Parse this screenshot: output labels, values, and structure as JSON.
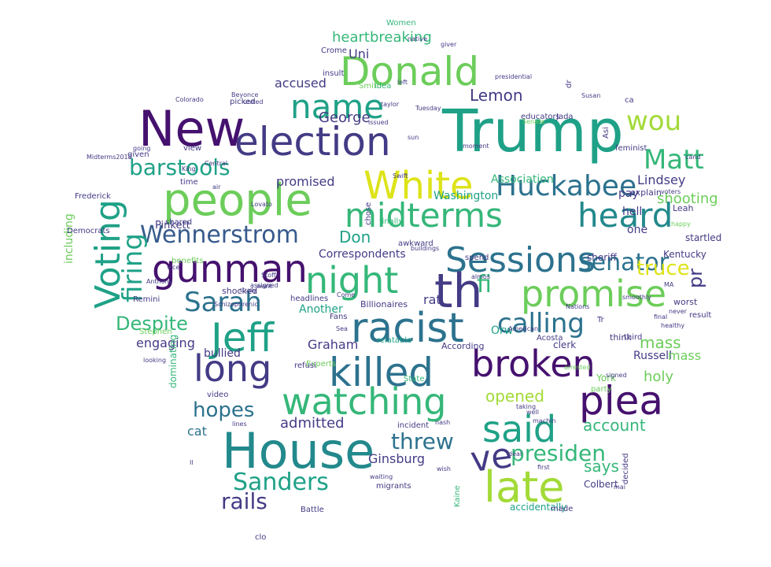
{
  "palette": {
    "purple": "#45116e",
    "indigo": "#433b85",
    "blue": "#375a8c",
    "steel": "#2c728e",
    "teal": "#22898c",
    "sea": "#1fa187",
    "green": "#35b779",
    "lime": "#6ccd5a",
    "chartreuse": "#a2da37",
    "yellow": "#dde318"
  },
  "words": [
    {
      "text": "Trump",
      "color": "sea"
    },
    {
      "text": "New",
      "color": "purple"
    },
    {
      "text": "Donald",
      "color": "lime"
    },
    {
      "text": "election",
      "color": "indigo"
    },
    {
      "text": "name",
      "color": "sea"
    },
    {
      "text": "people",
      "color": "lime"
    },
    {
      "text": "White",
      "color": "yellow"
    },
    {
      "text": "Huckabee",
      "color": "steel"
    },
    {
      "text": "Matt",
      "color": "green"
    },
    {
      "text": "wou",
      "color": "chartreuse"
    },
    {
      "text": "Voting",
      "color": "sea"
    },
    {
      "text": "midterms",
      "color": "green"
    },
    {
      "text": "heard",
      "color": "teal"
    },
    {
      "text": "Wennerstrom",
      "color": "blue"
    },
    {
      "text": "firing",
      "color": "sea"
    },
    {
      "text": "gunman",
      "color": "purple"
    },
    {
      "text": "Sessions",
      "color": "steel"
    },
    {
      "text": "senator",
      "color": "steel"
    },
    {
      "text": "night",
      "color": "green"
    },
    {
      "text": "th",
      "color": "indigo"
    },
    {
      "text": "promise",
      "color": "lime"
    },
    {
      "text": "truce",
      "color": "yellow"
    },
    {
      "text": "Sarah",
      "color": "steel"
    },
    {
      "text": "racist",
      "color": "steel"
    },
    {
      "text": "Jeff",
      "color": "sea"
    },
    {
      "text": "calling",
      "color": "steel"
    },
    {
      "text": "Despite",
      "color": "green"
    },
    {
      "text": "long",
      "color": "indigo"
    },
    {
      "text": "killed",
      "color": "steel"
    },
    {
      "text": "broken",
      "color": "purple"
    },
    {
      "text": "watching",
      "color": "green"
    },
    {
      "text": "plea",
      "color": "purple"
    },
    {
      "text": "hopes",
      "color": "steel"
    },
    {
      "text": "said",
      "color": "sea"
    },
    {
      "text": "House",
      "color": "teal"
    },
    {
      "text": "ve",
      "color": "indigo"
    },
    {
      "text": "threw",
      "color": "steel"
    },
    {
      "text": "late",
      "color": "chartreuse"
    },
    {
      "text": "Sanders",
      "color": "sea"
    },
    {
      "text": "presiden",
      "color": "green"
    },
    {
      "text": "rails",
      "color": "indigo"
    },
    {
      "text": "barstools",
      "color": "sea"
    },
    {
      "text": "Lemon",
      "color": "indigo"
    },
    {
      "text": "heartbreaking",
      "color": "green"
    },
    {
      "text": "George",
      "color": "indigo"
    },
    {
      "text": "Lindsey",
      "color": "indigo"
    },
    {
      "text": "shooting",
      "color": "lime"
    },
    {
      "text": "Washington",
      "color": "sea"
    },
    {
      "text": "Don",
      "color": "sea"
    },
    {
      "text": "fi",
      "color": "green"
    },
    {
      "text": "pr",
      "color": "indigo"
    },
    {
      "text": "opened",
      "color": "chartreuse"
    },
    {
      "text": "account",
      "color": "green"
    },
    {
      "text": "says",
      "color": "green"
    },
    {
      "text": "admitted",
      "color": "indigo"
    },
    {
      "text": "Ginsburg",
      "color": "indigo"
    },
    {
      "text": "mass",
      "color": "lime"
    },
    {
      "text": "holy",
      "color": "lime"
    },
    {
      "text": "engaging",
      "color": "indigo"
    },
    {
      "text": "Graham",
      "color": "indigo"
    },
    {
      "text": "promised",
      "color": "indigo"
    },
    {
      "text": "accused",
      "color": "indigo"
    },
    {
      "text": "Uni",
      "color": "indigo"
    },
    {
      "text": "Another",
      "color": "sea"
    },
    {
      "text": "rat",
      "color": "indigo"
    },
    {
      "text": "bullied",
      "color": "indigo"
    },
    {
      "text": "Orw",
      "color": "sea"
    },
    {
      "text": "pay",
      "color": "indigo"
    },
    {
      "text": "hell",
      "color": "indigo"
    },
    {
      "text": "one",
      "color": "indigo"
    },
    {
      "text": "Pinkett",
      "color": "indigo"
    },
    {
      "text": "Correspondents",
      "color": "indigo"
    },
    {
      "text": "Association",
      "color": "green"
    },
    {
      "text": "Kentucky",
      "color": "indigo"
    },
    {
      "text": "sheriff",
      "color": "indigo"
    },
    {
      "text": "startled",
      "color": "indigo"
    },
    {
      "text": "cat",
      "color": "steel"
    },
    {
      "text": "Russell",
      "color": "indigo"
    },
    {
      "text": "clerk",
      "color": "indigo"
    },
    {
      "text": "mass",
      "color": "lime"
    },
    {
      "text": "explain",
      "color": "indigo"
    },
    {
      "text": "Leah",
      "color": "indigo"
    },
    {
      "text": "spend",
      "color": "indigo"
    },
    {
      "text": "awkward",
      "color": "indigo"
    },
    {
      "text": "shocked",
      "color": "indigo"
    },
    {
      "text": "headlines",
      "color": "indigo"
    },
    {
      "text": "Billionaires",
      "color": "indigo"
    },
    {
      "text": "relatable",
      "color": "sea"
    },
    {
      "text": "Acosta",
      "color": "indigo"
    },
    {
      "text": "According",
      "color": "indigo"
    },
    {
      "text": "third",
      "color": "indigo"
    },
    {
      "text": "think",
      "color": "indigo"
    },
    {
      "text": "result",
      "color": "indigo"
    },
    {
      "text": "worst",
      "color": "indigo"
    },
    {
      "text": "York",
      "color": "lime"
    },
    {
      "text": "incident",
      "color": "indigo"
    },
    {
      "text": "Colbert",
      "color": "indigo"
    },
    {
      "text": "accidentally",
      "color": "sea"
    },
    {
      "text": "made",
      "color": "indigo"
    },
    {
      "text": "Battle",
      "color": "indigo"
    },
    {
      "text": "decided",
      "color": "indigo"
    },
    {
      "text": "including",
      "color": "lime"
    },
    {
      "text": "Women",
      "color": "green"
    },
    {
      "text": "Crome",
      "color": "indigo"
    },
    {
      "text": "insult",
      "color": "indigo"
    },
    {
      "text": "Smith",
      "color": "lime"
    },
    {
      "text": "idea",
      "color": "green"
    },
    {
      "text": "educators",
      "color": "indigo"
    },
    {
      "text": "Jada",
      "color": "indigo"
    },
    {
      "text": "picked",
      "color": "indigo"
    },
    {
      "text": "given",
      "color": "indigo"
    },
    {
      "text": "view",
      "color": "indigo"
    },
    {
      "text": "time",
      "color": "indigo"
    },
    {
      "text": "shared",
      "color": "indigo"
    },
    {
      "text": "benefits",
      "color": "lime"
    },
    {
      "text": "Remini",
      "color": "indigo"
    },
    {
      "text": "finally",
      "color": "green"
    },
    {
      "text": "chose",
      "color": "indigo"
    },
    {
      "text": "Democrats",
      "color": "indigo"
    },
    {
      "text": "feminist",
      "color": "indigo"
    },
    {
      "text": "Experts",
      "color": "lime"
    },
    {
      "text": "Kaine",
      "color": "green"
    },
    {
      "text": "State",
      "color": "green"
    },
    {
      "text": "Fans",
      "color": "indigo"
    },
    {
      "text": "party",
      "color": "lime"
    },
    {
      "text": "migrants",
      "color": "indigo"
    },
    {
      "text": "clo",
      "color": "indigo"
    },
    {
      "text": "dr",
      "color": "indigo"
    },
    {
      "text": "ca",
      "color": "indigo"
    },
    {
      "text": "Asi",
      "color": "indigo"
    },
    {
      "text": "Stephen",
      "color": "lime"
    },
    {
      "text": "dominating",
      "color": "green"
    },
    {
      "text": "video",
      "color": "indigo"
    },
    {
      "text": "refusi",
      "color": "indigo"
    },
    {
      "text": "Tr",
      "color": "indigo"
    },
    {
      "text": "Frederick",
      "color": "indigo"
    },
    {
      "text": "going",
      "color": "indigo"
    },
    {
      "text": "Midterms2018",
      "color": "indigo"
    },
    {
      "text": "King",
      "color": "indigo"
    },
    {
      "text": "Colorado",
      "color": "indigo"
    },
    {
      "text": "Beyonce",
      "color": "indigo"
    },
    {
      "text": "native",
      "color": "indigo"
    },
    {
      "text": "united",
      "color": "indigo"
    },
    {
      "text": "taylor",
      "color": "indigo"
    },
    {
      "text": "issued",
      "color": "indigo"
    },
    {
      "text": "presidential",
      "color": "indigo"
    },
    {
      "text": "Senate",
      "color": "lime"
    },
    {
      "text": "voters",
      "color": "indigo"
    },
    {
      "text": "Lovato",
      "color": "indigo"
    },
    {
      "text": "waiting",
      "color": "indigo"
    },
    {
      "text": "study",
      "color": "indigo"
    },
    {
      "text": "Anthony",
      "color": "indigo"
    },
    {
      "text": "smoothly",
      "color": "indigo"
    },
    {
      "text": "Nations",
      "color": "indigo"
    },
    {
      "text": "American",
      "color": "indigo"
    },
    {
      "text": "arrested",
      "color": "lime"
    },
    {
      "text": "signed",
      "color": "indigo"
    },
    {
      "text": "taking",
      "color": "indigo"
    },
    {
      "text": "machin",
      "color": "indigo"
    },
    {
      "text": "deal",
      "color": "indigo"
    },
    {
      "text": "lines",
      "color": "indigo"
    },
    {
      "text": "looking",
      "color": "indigo"
    },
    {
      "text": "healthy",
      "color": "indigo"
    },
    {
      "text": "Tuesday",
      "color": "indigo"
    },
    {
      "text": "moment",
      "color": "indigo"
    },
    {
      "text": "Il",
      "color": "indigo"
    },
    {
      "text": "first",
      "color": "indigo"
    },
    {
      "text": "wish",
      "color": "indigo"
    },
    {
      "text": "buildings",
      "color": "indigo"
    },
    {
      "text": "want",
      "color": "indigo"
    },
    {
      "text": "vice",
      "color": "indigo"
    },
    {
      "text": "almos",
      "color": "indigo"
    },
    {
      "text": "sun",
      "color": "indigo"
    },
    {
      "text": "Stoff",
      "color": "indigo"
    },
    {
      "text": "assigned",
      "color": "indigo"
    },
    {
      "text": "Schizophrenic",
      "color": "indigo"
    },
    {
      "text": "Come",
      "color": "indigo"
    },
    {
      "text": "never",
      "color": "indigo"
    },
    {
      "text": "cand",
      "color": "indigo"
    },
    {
      "text": "happy",
      "color": "lime"
    },
    {
      "text": "Susan",
      "color": "indigo"
    },
    {
      "text": "giver",
      "color": "indigo"
    },
    {
      "text": "nash",
      "color": "indigo"
    },
    {
      "text": "left",
      "color": "indigo"
    },
    {
      "text": "final",
      "color": "indigo"
    },
    {
      "text": "well",
      "color": "indigo"
    },
    {
      "text": "mai",
      "color": "indigo"
    },
    {
      "text": "air",
      "color": "indigo"
    },
    {
      "text": "Swift",
      "color": "indigo"
    },
    {
      "text": "Sea",
      "color": "indigo"
    },
    {
      "text": "MA",
      "color": "indigo"
    },
    {
      "text": "Central",
      "color": "indigo"
    },
    {
      "text": "country",
      "color": "indigo"
    },
    {
      "text": "locked",
      "color": "indigo"
    },
    {
      "text": "you",
      "color": "indigo"
    }
  ]
}
